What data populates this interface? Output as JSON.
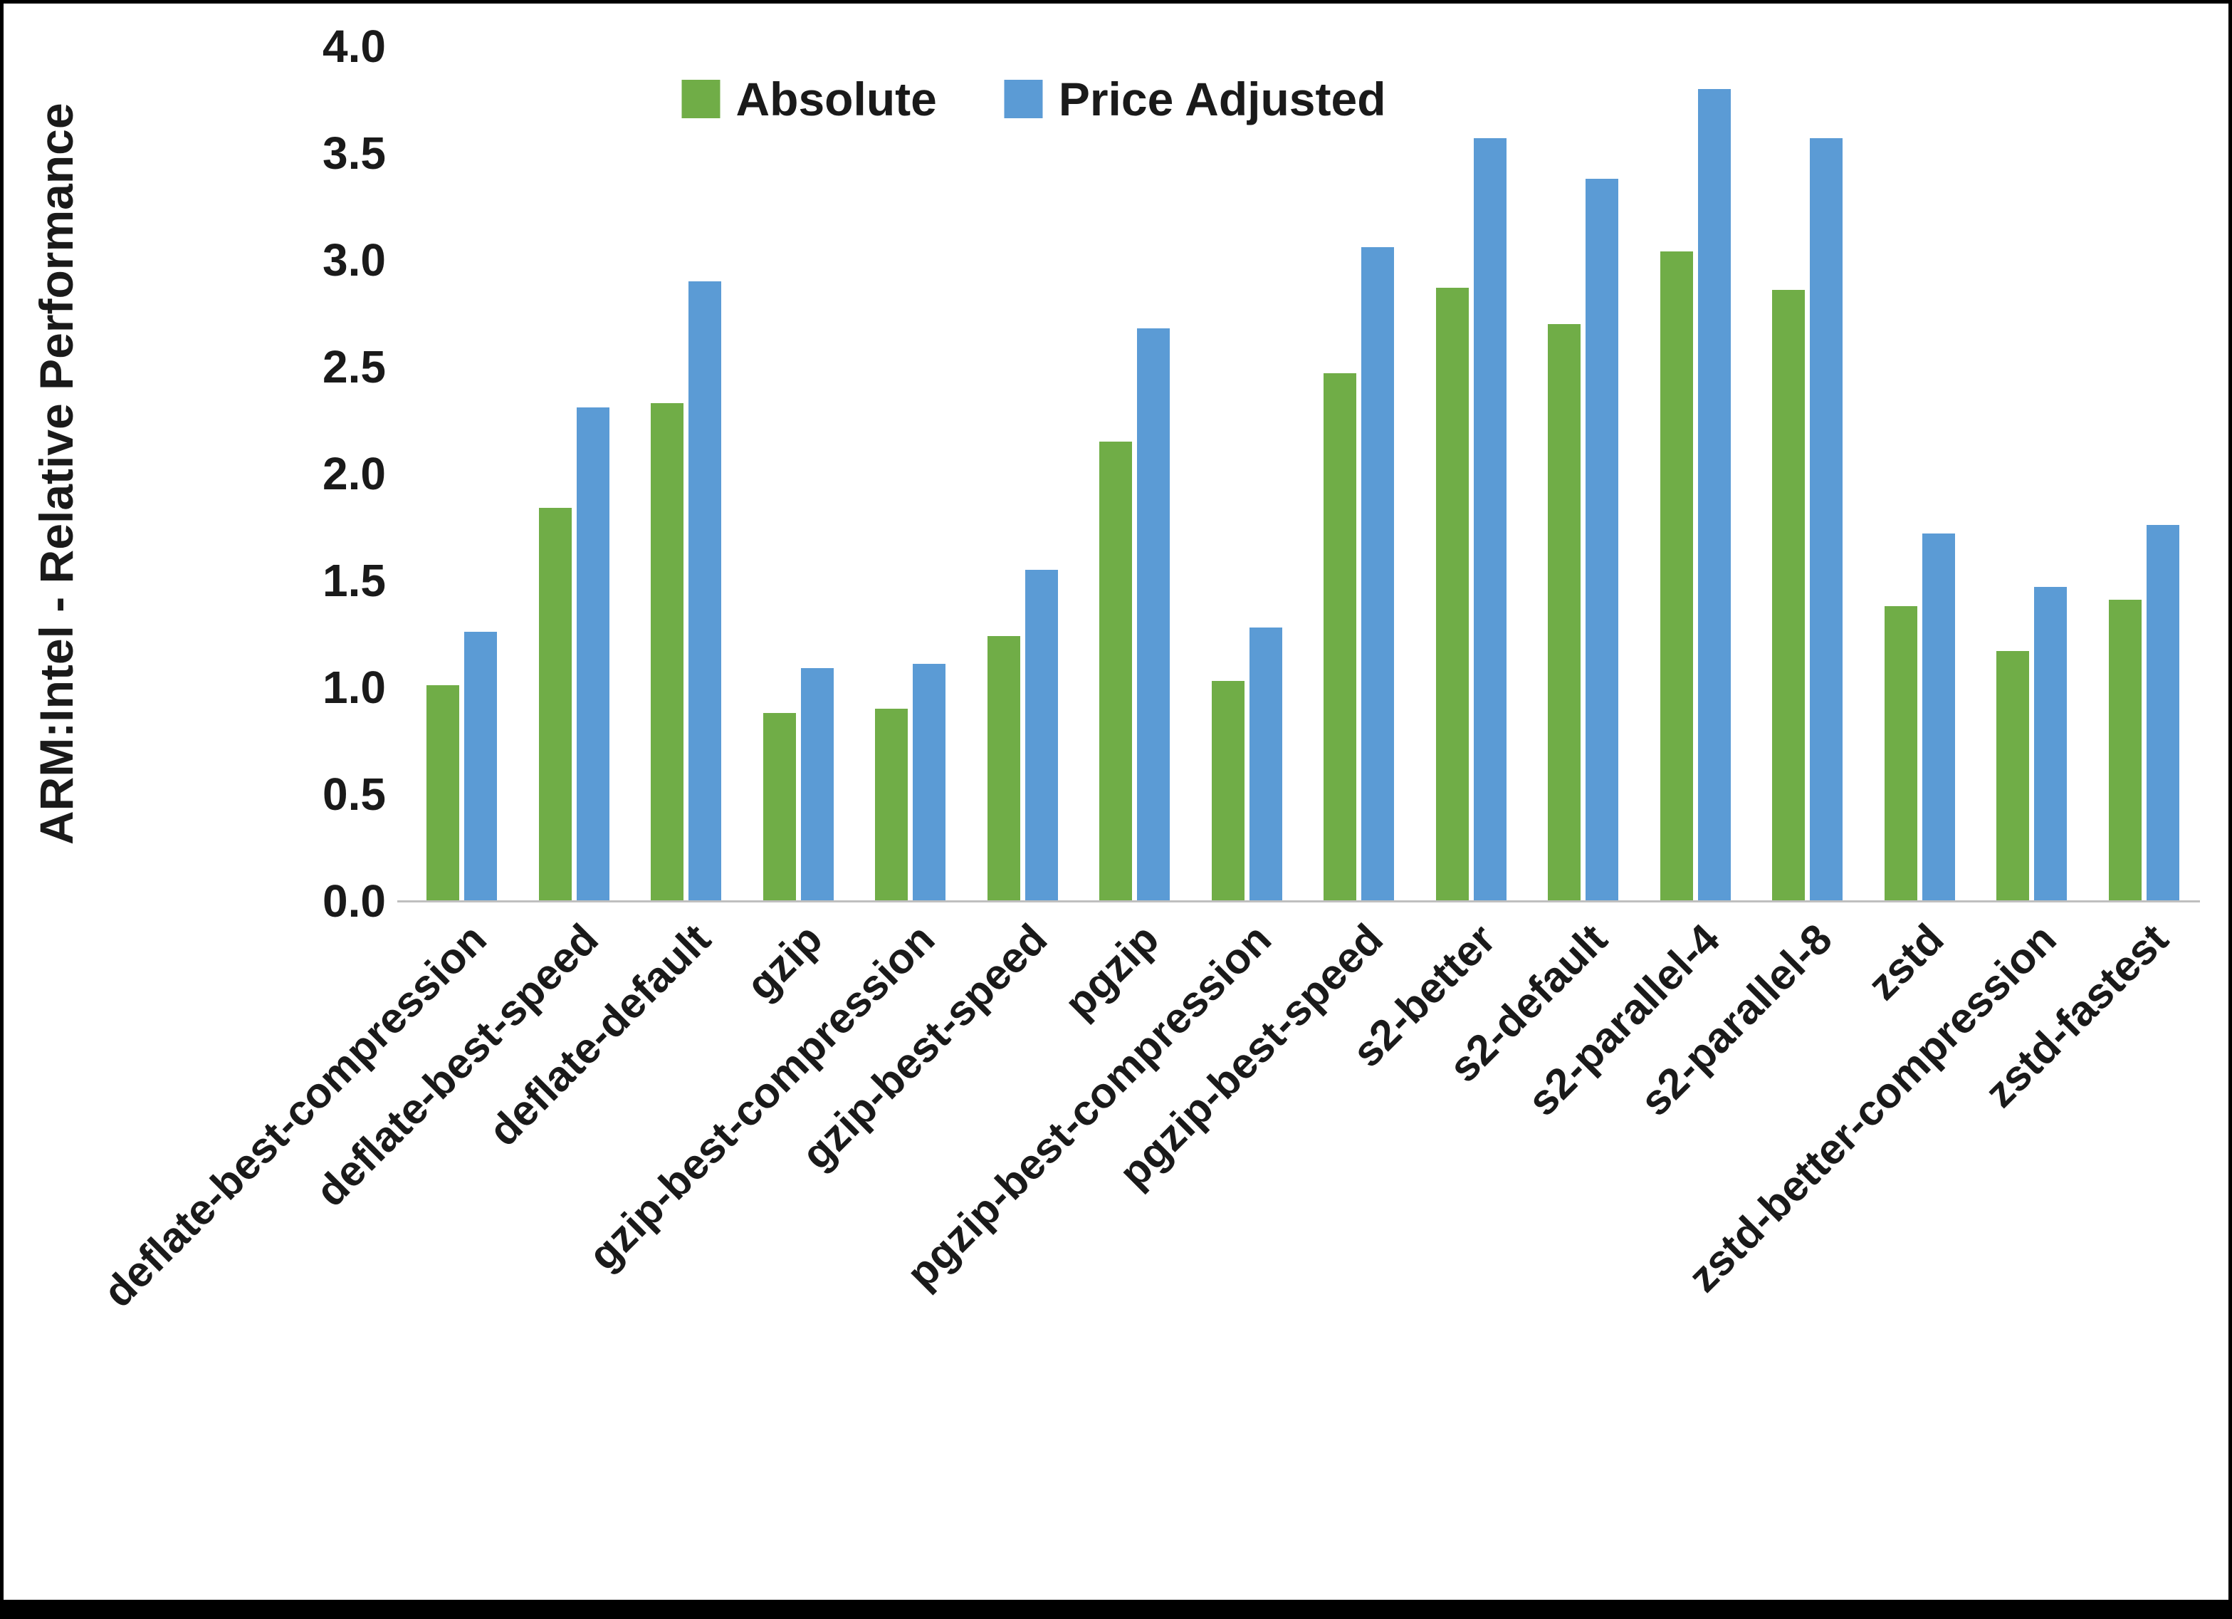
{
  "chart_data": {
    "type": "bar",
    "title": "",
    "xlabel": "",
    "ylabel": "ARM:Intel - Relative Performance",
    "ylim": [
      0.0,
      4.0
    ],
    "yticks": [
      0.0,
      0.5,
      1.0,
      1.5,
      2.0,
      2.5,
      3.0,
      3.5,
      4.0
    ],
    "ytick_format_decimals": 1,
    "grid": false,
    "legend_position": "top",
    "categories": [
      "deflate-best-compression",
      "deflate-best-speed",
      "deflate-default",
      "gzip",
      "gzip-best-compression",
      "gzip-best-speed",
      "pgzip",
      "pgzip-best-compression",
      "pgzip-best-speed",
      "s2-better",
      "s2-default",
      "s2-parallel-4",
      "s2-parallel-8",
      "zstd",
      "zstd-better-compression",
      "zstd-fastest"
    ],
    "series": [
      {
        "name": "Absolute",
        "color": "#70AD47",
        "values": [
          1.01,
          1.84,
          2.33,
          0.88,
          0.9,
          1.24,
          2.15,
          1.03,
          2.47,
          2.87,
          2.7,
          3.04,
          2.86,
          1.38,
          1.17,
          1.41
        ]
      },
      {
        "name": "Price Adjusted",
        "color": "#5B9BD5",
        "values": [
          1.26,
          2.31,
          2.9,
          1.09,
          1.11,
          1.55,
          2.68,
          1.28,
          3.06,
          3.57,
          3.38,
          3.8,
          3.57,
          1.72,
          1.47,
          1.76
        ]
      }
    ]
  }
}
